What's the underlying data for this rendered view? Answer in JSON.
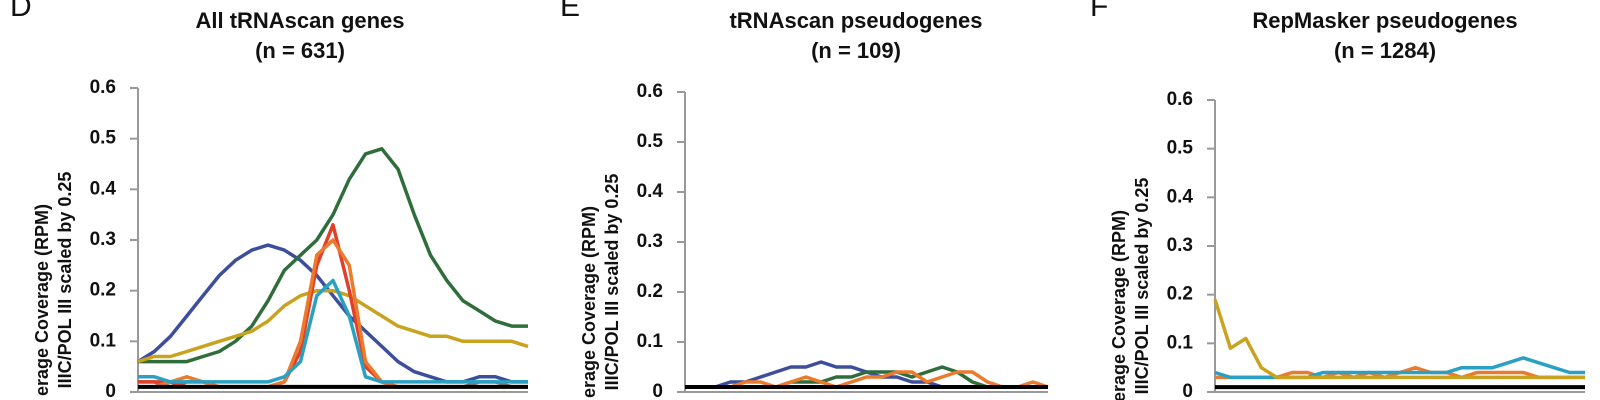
{
  "chart_data": [
    {
      "type": "line",
      "panel": "D",
      "title": "All tRNAscan genes",
      "subtitle": "(n = 631)",
      "y_label": "erage Coverage (RPM)",
      "y_label2": "IIIC/POL III scaled by 0.25",
      "categories": [
        null,
        null,
        null,
        null,
        null,
        null,
        null,
        null,
        null,
        null,
        null,
        null,
        null,
        null,
        null,
        null,
        null,
        null,
        null,
        null,
        null,
        null,
        null,
        null,
        null
      ],
      "ylim": [
        0,
        0.6
      ],
      "yticks": [
        0,
        0.1,
        0.2,
        0.3,
        0.4,
        0.5,
        0.6
      ],
      "series": [
        {
          "color": "#7a7a7a",
          "values": [
            0.02,
            0.02,
            0.01,
            0.02,
            0.02,
            0.01,
            0.01,
            0.01,
            0.01,
            0.01,
            0.01,
            0.01,
            0.01,
            0.01,
            0.01,
            0.01,
            0.01,
            0.01,
            0.01,
            0.01,
            0.01,
            0.02,
            0.02,
            0.01,
            0.01
          ]
        },
        {
          "color": "#3d4f9c",
          "values": [
            0.06,
            0.08,
            0.11,
            0.15,
            0.19,
            0.23,
            0.26,
            0.28,
            0.29,
            0.28,
            0.26,
            0.23,
            0.19,
            0.15,
            0.12,
            0.09,
            0.06,
            0.04,
            0.03,
            0.02,
            0.02,
            0.03,
            0.03,
            0.02,
            0.02
          ]
        },
        {
          "color": "#2f6e3b",
          "values": [
            0.06,
            0.06,
            0.06,
            0.06,
            0.07,
            0.08,
            0.1,
            0.13,
            0.18,
            0.24,
            0.27,
            0.3,
            0.35,
            0.42,
            0.47,
            0.48,
            0.44,
            0.35,
            0.27,
            0.22,
            0.18,
            0.16,
            0.14,
            0.13,
            0.13
          ]
        },
        {
          "color": "#c9a21f",
          "values": [
            0.06,
            0.07,
            0.07,
            0.08,
            0.09,
            0.1,
            0.11,
            0.12,
            0.14,
            0.17,
            0.19,
            0.2,
            0.2,
            0.19,
            0.17,
            0.15,
            0.13,
            0.12,
            0.11,
            0.11,
            0.1,
            0.1,
            0.1,
            0.1,
            0.09
          ]
        },
        {
          "color": "#e0402a",
          "values": [
            0.02,
            0.02,
            0.02,
            0.01,
            0.01,
            0.01,
            0.01,
            0.01,
            0.01,
            0.02,
            0.08,
            0.25,
            0.33,
            0.2,
            0.05,
            0.02,
            0.01,
            0.01,
            0.01,
            0.01,
            0.01,
            0.01,
            0.01,
            0.01,
            0.01
          ]
        },
        {
          "color": "#ec7a2c",
          "values": [
            0.01,
            0.01,
            0.02,
            0.03,
            0.02,
            0.01,
            0.01,
            0.01,
            0.01,
            0.02,
            0.1,
            0.27,
            0.3,
            0.25,
            0.06,
            0.02,
            0.01,
            0.01,
            0.01,
            0.01,
            0.01,
            0.01,
            0.01,
            0.01,
            0.01
          ]
        },
        {
          "color": "#2aa0c2",
          "values": [
            0.03,
            0.03,
            0.02,
            0.02,
            0.02,
            0.02,
            0.02,
            0.02,
            0.02,
            0.03,
            0.06,
            0.19,
            0.22,
            0.15,
            0.03,
            0.02,
            0.02,
            0.02,
            0.02,
            0.02,
            0.02,
            0.02,
            0.02,
            0.02,
            0.02
          ]
        },
        {
          "color": "#000000",
          "values": [
            0.01,
            0.01,
            0.01,
            0.01,
            0.01,
            0.01,
            0.01,
            0.01,
            0.01,
            0.01,
            0.01,
            0.01,
            0.01,
            0.01,
            0.01,
            0.01,
            0.01,
            0.01,
            0.01,
            0.01,
            0.01,
            0.01,
            0.01,
            0.01,
            0.01
          ]
        }
      ]
    },
    {
      "type": "line",
      "panel": "E",
      "title": "tRNAscan pseudogenes",
      "subtitle": "(n = 109)",
      "y_label": "erage Coverage (RPM)",
      "y_label2": "IIIC/POL III scaled by 0.25",
      "categories": [
        null,
        null,
        null,
        null,
        null,
        null,
        null,
        null,
        null,
        null,
        null,
        null,
        null,
        null,
        null,
        null,
        null,
        null,
        null,
        null,
        null,
        null,
        null,
        null,
        null
      ],
      "ylim": [
        0,
        0.6
      ],
      "yticks": [
        0,
        0.1,
        0.2,
        0.3,
        0.4,
        0.5,
        0.6
      ],
      "series": [
        {
          "color": "#3d4f9c",
          "values": [
            0.01,
            0.01,
            0.01,
            0.02,
            0.02,
            0.03,
            0.04,
            0.05,
            0.05,
            0.06,
            0.05,
            0.05,
            0.04,
            0.03,
            0.03,
            0.02,
            0.02,
            0.01,
            0.01,
            0.01,
            0.01,
            0.01,
            0.01,
            0.01,
            0.01
          ]
        },
        {
          "color": "#2f6e3b",
          "values": [
            0.01,
            0.01,
            0.01,
            0.01,
            0.01,
            0.01,
            0.01,
            0.02,
            0.02,
            0.02,
            0.03,
            0.03,
            0.04,
            0.04,
            0.04,
            0.03,
            0.04,
            0.05,
            0.04,
            0.02,
            0.01,
            0.01,
            0.01,
            0.01,
            0.01
          ]
        },
        {
          "color": "#ec7a2c",
          "values": [
            0.01,
            0.01,
            0.01,
            0.01,
            0.02,
            0.02,
            0.01,
            0.02,
            0.03,
            0.02,
            0.01,
            0.02,
            0.03,
            0.03,
            0.04,
            0.04,
            0.02,
            0.03,
            0.04,
            0.04,
            0.02,
            0.01,
            0.01,
            0.02,
            0.01
          ]
        },
        {
          "color": "#000000",
          "values": [
            0.01,
            0.01,
            0.01,
            0.01,
            0.01,
            0.01,
            0.01,
            0.01,
            0.01,
            0.01,
            0.01,
            0.01,
            0.01,
            0.01,
            0.01,
            0.01,
            0.01,
            0.01,
            0.01,
            0.01,
            0.01,
            0.01,
            0.01,
            0.01,
            0.01
          ]
        }
      ]
    },
    {
      "type": "line",
      "panel": "F",
      "title": "RepMasker pseudogenes",
      "subtitle": "(n = 1284)",
      "y_label": "erage Coverage (RPM)",
      "y_label2": "IIIC/POL III scaled by 0.25",
      "categories": [
        null,
        null,
        null,
        null,
        null,
        null,
        null,
        null,
        null,
        null,
        null,
        null,
        null,
        null,
        null,
        null,
        null,
        null,
        null,
        null,
        null,
        null,
        null,
        null,
        null
      ],
      "ylim": [
        0,
        0.6
      ],
      "yticks": [
        0,
        0.1,
        0.2,
        0.3,
        0.4,
        0.5,
        0.6
      ],
      "series": [
        {
          "color": "#ec7a2c",
          "values": [
            0.03,
            0.03,
            0.03,
            0.03,
            0.03,
            0.04,
            0.04,
            0.03,
            0.04,
            0.03,
            0.04,
            0.03,
            0.04,
            0.05,
            0.04,
            0.04,
            0.03,
            0.04,
            0.04,
            0.04,
            0.04,
            0.03,
            0.03,
            0.03,
            0.03
          ]
        },
        {
          "color": "#2aa0c2",
          "values": [
            0.04,
            0.03,
            0.03,
            0.03,
            0.03,
            0.03,
            0.03,
            0.04,
            0.04,
            0.04,
            0.04,
            0.04,
            0.04,
            0.04,
            0.04,
            0.04,
            0.05,
            0.05,
            0.05,
            0.06,
            0.07,
            0.06,
            0.05,
            0.04,
            0.04
          ]
        },
        {
          "color": "#c9a21f",
          "values": [
            0.19,
            0.09,
            0.11,
            0.05,
            0.03,
            0.03,
            0.03,
            0.03,
            0.03,
            0.03,
            0.03,
            0.03,
            0.03,
            0.03,
            0.03,
            0.03,
            0.03,
            0.03,
            0.03,
            0.03,
            0.03,
            0.03,
            0.03,
            0.03,
            0.03
          ]
        },
        {
          "color": "#000000",
          "values": [
            0.01,
            0.01,
            0.01,
            0.01,
            0.01,
            0.01,
            0.01,
            0.01,
            0.01,
            0.01,
            0.01,
            0.01,
            0.01,
            0.01,
            0.01,
            0.01,
            0.01,
            0.01,
            0.01,
            0.01,
            0.01,
            0.01,
            0.01,
            0.01,
            0.01
          ]
        }
      ]
    }
  ]
}
